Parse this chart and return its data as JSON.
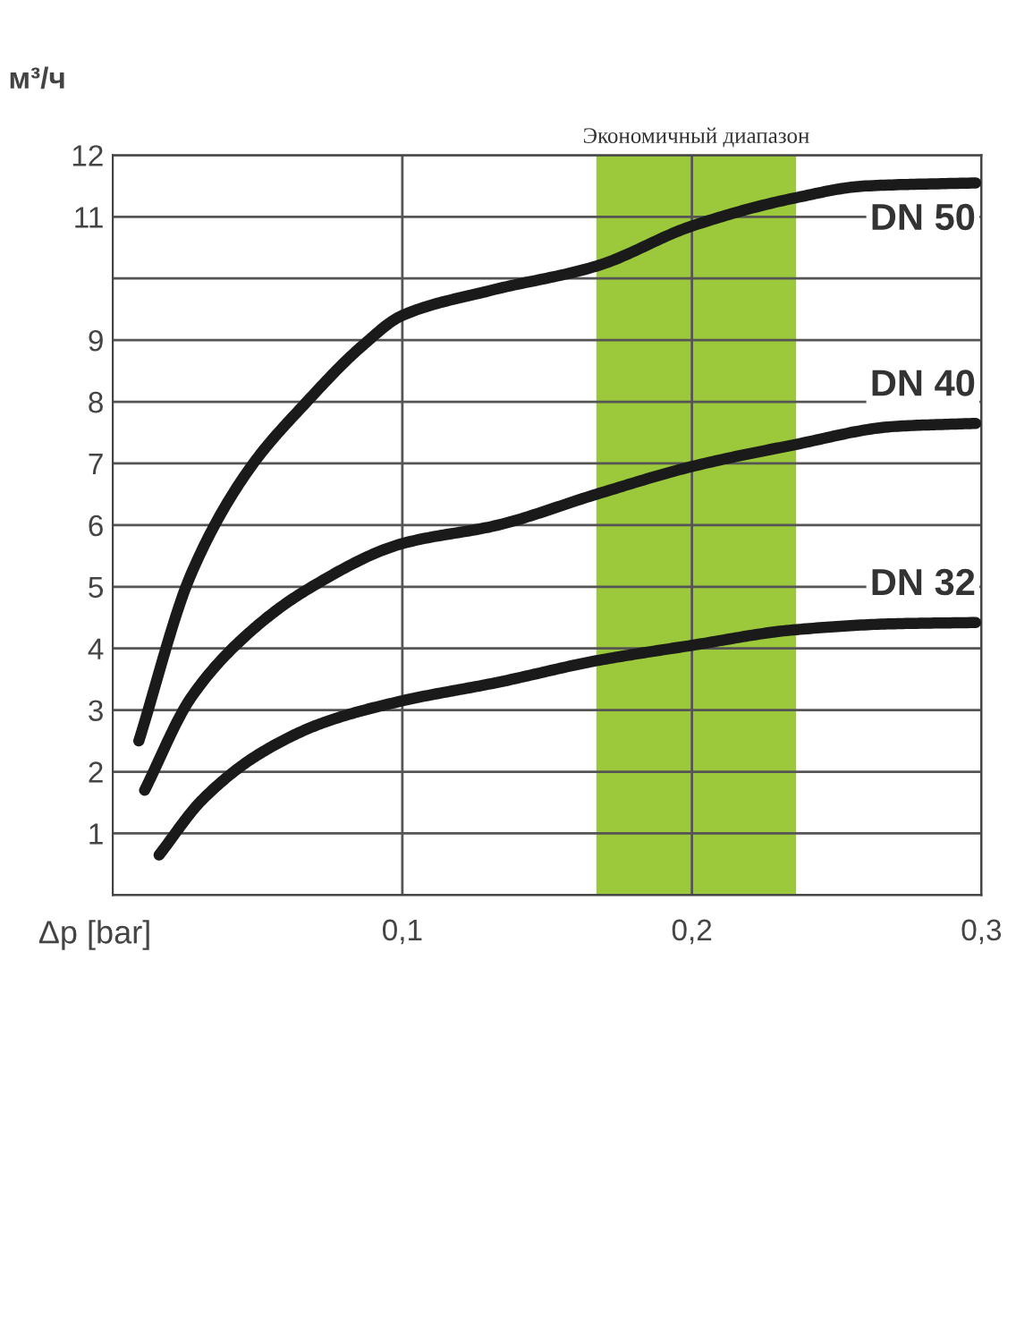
{
  "chart_data": {
    "type": "line",
    "xlabel": "Δp [bar]",
    "ylabel": "м³/ч",
    "xlim": [
      0,
      0.3
    ],
    "ylim": [
      0,
      12
    ],
    "xticks": [
      {
        "value": 0.1,
        "label": "0,1"
      },
      {
        "value": 0.2,
        "label": "0,2"
      },
      {
        "value": 0.3,
        "label": "0,3"
      }
    ],
    "yticks": [
      {
        "value": 0,
        "label": null
      },
      1,
      2,
      3,
      4,
      5,
      6,
      7,
      8,
      9,
      {
        "value": 10,
        "label": null
      },
      11,
      12
    ],
    "grid": true,
    "legend": false,
    "marker": "none",
    "line_style": "solid",
    "bands": [
      {
        "axis": "x",
        "from": 0.167,
        "to": 0.236,
        "label": "Экономичный диапазон",
        "color": "#9bc93b"
      }
    ],
    "series": [
      {
        "name": "DN 50",
        "color": "#1a1a1a",
        "x": [
          0.009,
          0.027,
          0.047,
          0.067,
          0.086,
          0.1,
          0.13,
          0.167,
          0.2,
          0.235,
          0.26,
          0.298
        ],
        "values": [
          2.5,
          5.2,
          6.9,
          8.0,
          8.9,
          9.4,
          9.8,
          10.2,
          10.85,
          11.3,
          11.5,
          11.55
        ]
      },
      {
        "name": "DN 40",
        "color": "#1a1a1a",
        "x": [
          0.011,
          0.027,
          0.047,
          0.067,
          0.1,
          0.133,
          0.167,
          0.2,
          0.235,
          0.27,
          0.298
        ],
        "values": [
          1.7,
          3.2,
          4.25,
          4.95,
          5.7,
          6.0,
          6.5,
          6.95,
          7.3,
          7.6,
          7.65
        ]
      },
      {
        "name": "DN 32",
        "color": "#1a1a1a",
        "x": [
          0.016,
          0.031,
          0.051,
          0.073,
          0.1,
          0.133,
          0.167,
          0.2,
          0.235,
          0.27,
          0.298
        ],
        "values": [
          0.65,
          1.55,
          2.3,
          2.8,
          3.15,
          3.45,
          3.8,
          4.05,
          4.3,
          4.4,
          4.42
        ]
      }
    ]
  }
}
